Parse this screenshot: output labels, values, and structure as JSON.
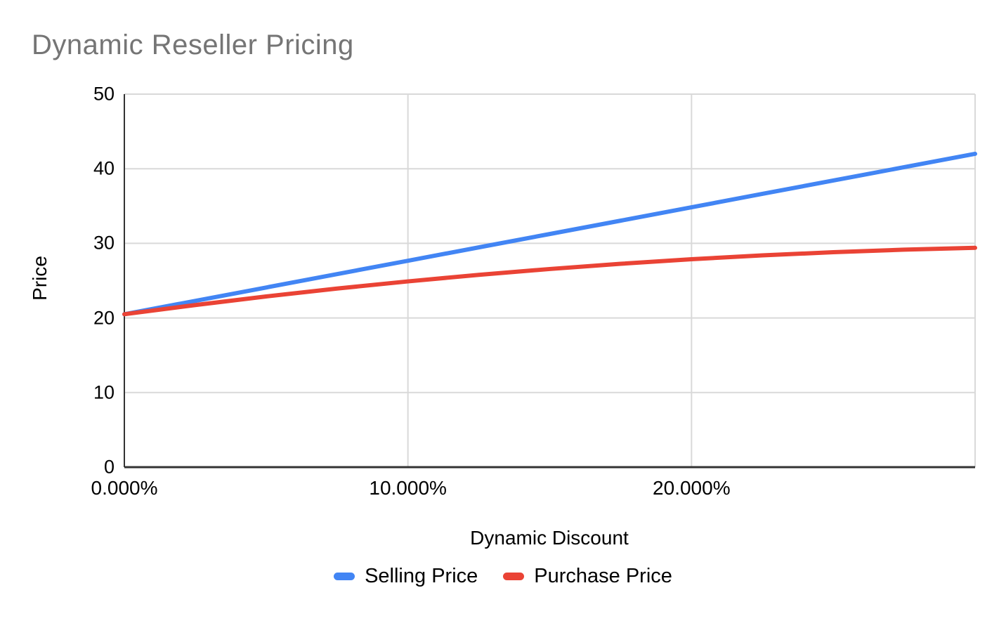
{
  "chart_title": "Dynamic Reseller Pricing",
  "colors": {
    "background": "#ffffff",
    "title_text": "#757575",
    "axis_text": "#000000",
    "axis_line": "#333333",
    "gridline": "#d9d9d9",
    "selling_price": "#4285F4",
    "purchase_price": "#EA4335"
  },
  "chart_data": {
    "type": "line",
    "title": "Dynamic Reseller Pricing",
    "xlabel": "Dynamic Discount",
    "ylabel": "Price",
    "xlim": [
      0,
      30
    ],
    "ylim": [
      0,
      50
    ],
    "x_unit": "percent",
    "grid": true,
    "legend_position": "bottom",
    "x": [
      0,
      2.5,
      5,
      7.5,
      10,
      12.5,
      15,
      17.5,
      20,
      22.5,
      25,
      27.5,
      30
    ],
    "series": [
      {
        "name": "Selling Price",
        "color": "#4285F4",
        "values": [
          20.5,
          22.29,
          24.08,
          25.88,
          27.67,
          29.46,
          31.25,
          33.04,
          34.83,
          36.63,
          38.42,
          40.21,
          42.0
        ]
      },
      {
        "name": "Purchase Price",
        "color": "#EA4335",
        "values": [
          20.5,
          21.73,
          22.88,
          23.94,
          24.9,
          25.78,
          26.56,
          27.26,
          27.87,
          28.39,
          28.81,
          29.15,
          29.4
        ]
      }
    ],
    "y_ticks": [
      {
        "value": 0,
        "label": "0"
      },
      {
        "value": 10,
        "label": "10"
      },
      {
        "value": 20,
        "label": "20"
      },
      {
        "value": 30,
        "label": "30"
      },
      {
        "value": 40,
        "label": "40"
      },
      {
        "value": 50,
        "label": "50"
      }
    ],
    "x_ticks": [
      {
        "value": 0,
        "label": "0.000%"
      },
      {
        "value": 10,
        "label": "10.000%"
      },
      {
        "value": 20,
        "label": "20.000%"
      }
    ],
    "x_gridlines": [
      10,
      20,
      30
    ]
  }
}
